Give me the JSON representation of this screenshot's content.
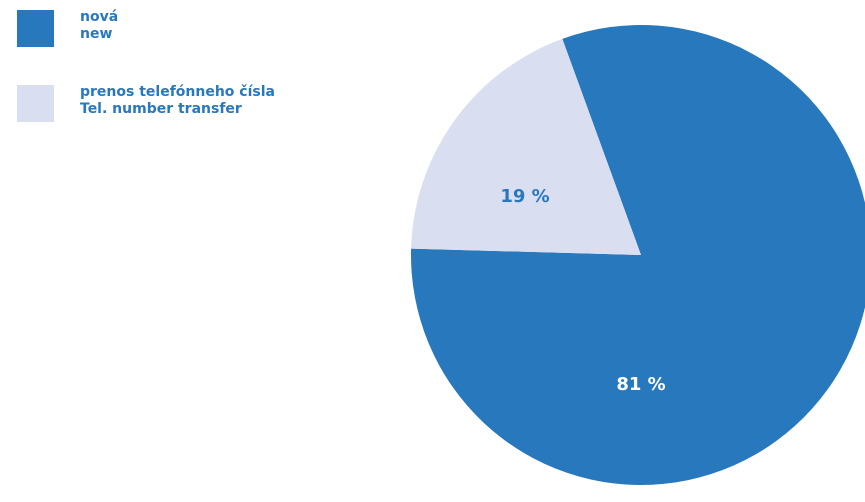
{
  "chart_data": {
    "type": "pie",
    "categories": [
      "nová",
      "prenos telefónneho čísla"
    ],
    "categories_en": [
      "new",
      "Tel. number transfer"
    ],
    "values": [
      81,
      19
    ],
    "value_labels": [
      "81 %",
      "19 %"
    ],
    "colors": [
      "#2878bd",
      "#d9dff0"
    ]
  }
}
